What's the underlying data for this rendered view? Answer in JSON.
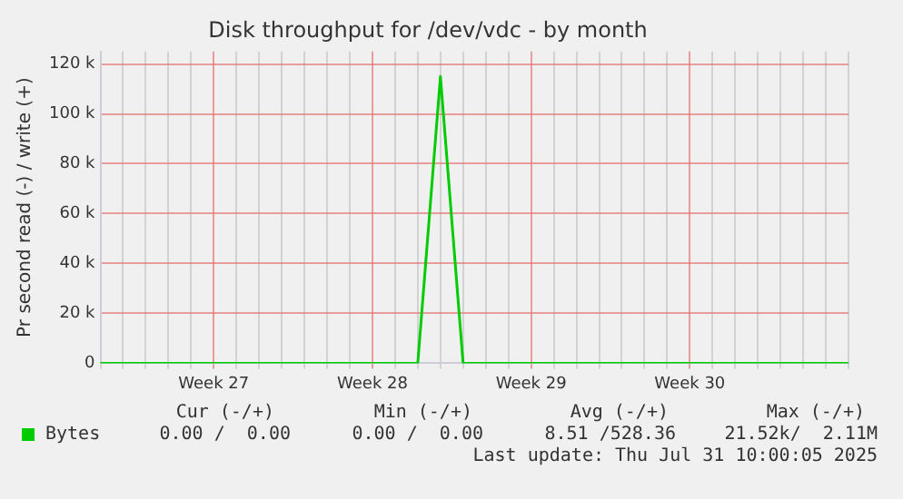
{
  "chart_data": {
    "type": "line",
    "title": "Disk throughput for /dev/vdc - by month",
    "ylabel": "Pr second read (-) / write (+)",
    "categories": [
      null,
      null,
      null,
      null,
      null,
      "Week 27",
      null,
      null,
      null,
      null,
      null,
      null,
      "Week 28",
      null,
      null,
      null,
      null,
      null,
      null,
      "Week 29",
      null,
      null,
      null,
      null,
      null,
      null,
      "Week 30",
      null,
      null,
      null,
      null,
      null,
      null,
      null
    ],
    "series": [
      {
        "name": "Bytes",
        "color": "#00cc00",
        "values": [
          0,
          0,
          0,
          0,
          0,
          0,
          0,
          0,
          0,
          0,
          0,
          0,
          0,
          0,
          0,
          115000,
          0,
          0,
          0,
          0,
          0,
          0,
          0,
          0,
          0,
          0,
          0,
          0,
          0,
          0,
          0,
          0,
          0,
          0
        ]
      }
    ],
    "ylim": [
      0,
      125000
    ],
    "yticks": [
      0,
      {
        "value": 20000,
        "label": "20 k"
      },
      {
        "value": 40000,
        "label": "40 k"
      },
      {
        "value": 60000,
        "label": "60 k"
      },
      {
        "value": 80000,
        "label": "80 k"
      },
      {
        "value": 100000,
        "label": "100 k"
      },
      {
        "value": 120000,
        "label": "120 k"
      }
    ],
    "grid": true,
    "legend": "bottom left",
    "annotations": [
      "Cur (-/+)",
      "Min (-/+)",
      "Avg (-/+)",
      "Max (-/+)",
      "0.00 /  0.00",
      "0.00 /  0.00",
      "8.51 /528.36",
      "21.52k/  2.11M",
      "Last update: Thu Jul 31 10:00:05 2025"
    ]
  }
}
